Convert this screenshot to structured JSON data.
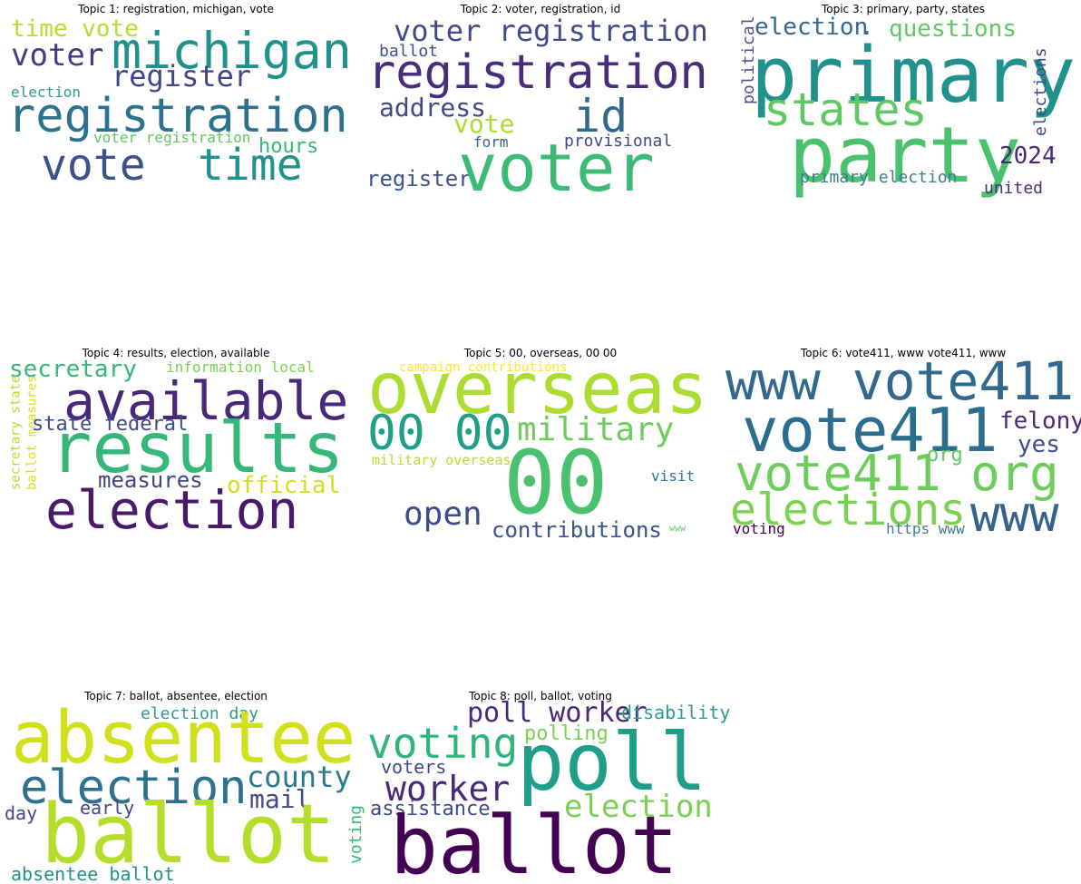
{
  "panels": [
    {
      "title": "Topic 1: registration, michigan, vote",
      "words": [
        {
          "text": "time vote",
          "color": "#b5de2b"
        },
        {
          "text": "michigan",
          "color": "#21918c"
        },
        {
          "text": "voter",
          "color": "#443983"
        },
        {
          "text": "register",
          "color": "#414487"
        },
        {
          "text": "election",
          "color": "#2a9d8f"
        },
        {
          "text": "registration",
          "color": "#2c728e"
        },
        {
          "text": "voter registration",
          "color": "#5ec962"
        },
        {
          "text": "hours",
          "color": "#35b779"
        },
        {
          "text": "vote",
          "color": "#3b528b"
        },
        {
          "text": "time",
          "color": "#21918c"
        }
      ]
    },
    {
      "title": "Topic 2: voter, registration, id",
      "words": [
        {
          "text": "voter registration",
          "color": "#3e4a89"
        },
        {
          "text": "ballot",
          "color": "#3b528b"
        },
        {
          "text": "registration",
          "color": "#472d7b"
        },
        {
          "text": "address",
          "color": "#3e4a89"
        },
        {
          "text": "id",
          "color": "#31688e"
        },
        {
          "text": "vote",
          "color": "#addc30"
        },
        {
          "text": "form",
          "color": "#31688e"
        },
        {
          "text": "provisional",
          "color": "#3e4a89"
        },
        {
          "text": "register",
          "color": "#3b528b"
        },
        {
          "text": "voter",
          "color": "#3bbb75"
        }
      ]
    },
    {
      "title": "Topic 3: primary, party, states",
      "words": [
        {
          "text": "political",
          "color": "#5b4a8f"
        },
        {
          "text": "election",
          "color": "#31688e"
        },
        {
          "text": ".",
          "color": "#31688e"
        },
        {
          "text": "questions",
          "color": "#5ec962"
        },
        {
          "text": "primary",
          "color": "#21918c"
        },
        {
          "text": "elections",
          "color": "#3e4a89"
        },
        {
          "text": "states",
          "color": "#5ec962"
        },
        {
          "text": "party",
          "color": "#4ac16d"
        },
        {
          "text": "2024",
          "color": "#482878"
        },
        {
          "text": "primary election",
          "color": "#3e7d8c"
        },
        {
          "text": "united",
          "color": "#472d7b"
        }
      ]
    },
    {
      "title": "Topic 4: results, election, available",
      "words": [
        {
          "text": "secretary",
          "color": "#35b779"
        },
        {
          "text": "information local",
          "color": "#7ad151"
        },
        {
          "text": "available",
          "color": "#482878"
        },
        {
          "text": "secretary state",
          "color": "#b5de2b"
        },
        {
          "text": "ballot measures",
          "color": "#d8e219"
        },
        {
          "text": "state federal",
          "color": "#3e4a89"
        },
        {
          "text": "results",
          "color": "#35b779"
        },
        {
          "text": "measures",
          "color": "#414487"
        },
        {
          "text": "official",
          "color": "#d0e11c"
        },
        {
          "text": "election",
          "color": "#481a6c"
        }
      ]
    },
    {
      "title": "Topic 5: 00, overseas, 00 00",
      "words": [
        {
          "text": "campaign contributions",
          "color": "#fde725"
        },
        {
          "text": "overseas",
          "color": "#addc30"
        },
        {
          "text": "00 00",
          "color": "#1f9e89"
        },
        {
          "text": "military",
          "color": "#6ccd5a"
        },
        {
          "text": "military overseas",
          "color": "#b5de2b"
        },
        {
          "text": "00",
          "color": "#4ac16d"
        },
        {
          "text": "visit",
          "color": "#2a788e"
        },
        {
          "text": "open",
          "color": "#3e4a89"
        },
        {
          "text": "contributions",
          "color": "#3b528b"
        },
        {
          "text": "www",
          "color": "#5ec962"
        }
      ]
    },
    {
      "title": "Topic 6: vote411, www vote411, www",
      "words": [
        {
          "text": "www vote411",
          "color": "#31688e"
        },
        {
          "text": "vote411",
          "color": "#2a6e8e"
        },
        {
          "text": "felony",
          "color": "#482878"
        },
        {
          "text": "yes",
          "color": "#3e4a89"
        },
        {
          "text": "org",
          "color": "#5ec962"
        },
        {
          "text": "vote411 org",
          "color": "#6ccd5a"
        },
        {
          "text": "elections",
          "color": "#7ad151"
        },
        {
          "text": "www",
          "color": "#33638d"
        },
        {
          "text": "voting",
          "color": "#440154"
        },
        {
          "text": "https www",
          "color": "#3e7d8c"
        }
      ]
    },
    {
      "title": "Topic 7: ballot, absentee, election",
      "words": [
        {
          "text": "election day",
          "color": "#2a9d8f"
        },
        {
          "text": "absentee",
          "color": "#d0e11c"
        },
        {
          "text": "election",
          "color": "#2c728e"
        },
        {
          "text": "county",
          "color": "#2a788e"
        },
        {
          "text": "mail",
          "color": "#3e4a89"
        },
        {
          "text": "day",
          "color": "#3e4a89"
        },
        {
          "text": "early",
          "color": "#414487"
        },
        {
          "text": "ballot",
          "color": "#b5de2b"
        },
        {
          "text": "voting",
          "color": "#35b779"
        },
        {
          "text": "absentee ballot",
          "color": "#21918c"
        }
      ]
    },
    {
      "title": "Topic 8: poll, ballot, voting",
      "words": [
        {
          "text": "poll worker",
          "color": "#482878"
        },
        {
          "text": "disability",
          "color": "#2a9d8f"
        },
        {
          "text": "polling",
          "color": "#7ad151"
        },
        {
          "text": "voting",
          "color": "#2fb47c"
        },
        {
          "text": "poll",
          "color": "#1f9e89"
        },
        {
          "text": "voters",
          "color": "#3e4a89"
        },
        {
          "text": "worker",
          "color": "#482878"
        },
        {
          "text": "election",
          "color": "#7ad151"
        },
        {
          "text": "assistance",
          "color": "#3e4a89"
        },
        {
          "text": "ballot",
          "color": "#440154"
        }
      ]
    }
  ]
}
